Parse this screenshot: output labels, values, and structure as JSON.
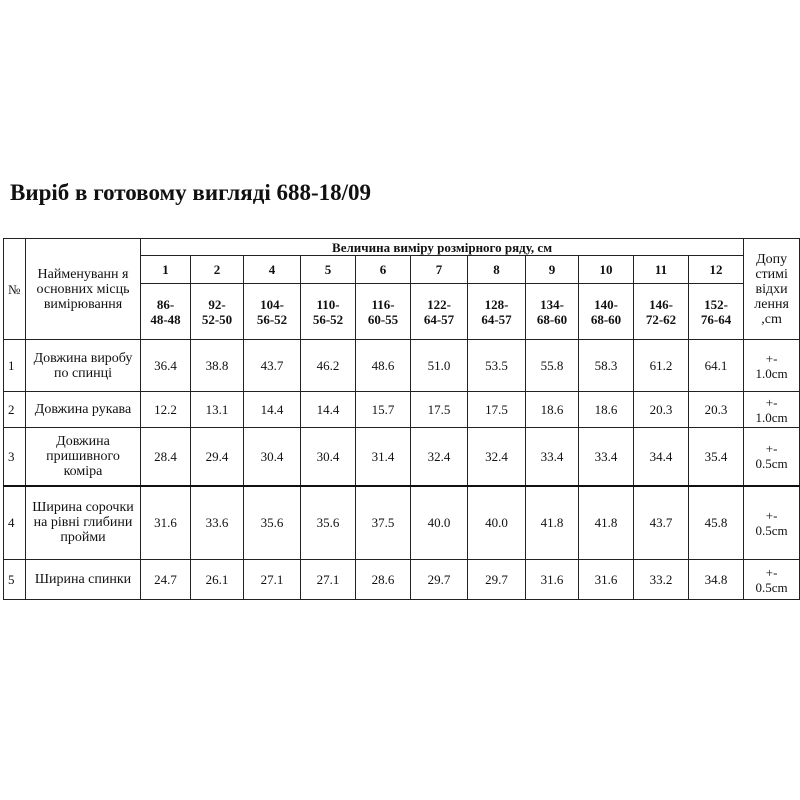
{
  "title": "Виріб в готовому вигляді  688-18/09",
  "table": {
    "header": {
      "number_label": "№",
      "name_label": "Найменуванн я основних місць вимірювання",
      "group_label": "Величина виміру розмірного ряду, см",
      "sizes": [
        {
          "number": "1",
          "measure": "86-\n48-48"
        },
        {
          "number": "2",
          "measure": "92-\n52-50"
        },
        {
          "number": "4",
          "measure": "104-\n56-52"
        },
        {
          "number": "5",
          "measure": "110-\n56-52"
        },
        {
          "number": "6",
          "measure": "116-\n60-55"
        },
        {
          "number": "7",
          "measure": "122-\n64-57"
        },
        {
          "number": "8",
          "measure": "128-\n64-57"
        },
        {
          "number": "9",
          "measure": "134-\n68-60"
        },
        {
          "number": "10",
          "measure": "140-\n68-60"
        },
        {
          "number": "11",
          "measure": "146-\n72-62"
        },
        {
          "number": "12",
          "measure": "152-\n76-64"
        }
      ],
      "tolerance_label": "Допу\nстимі\nвідхи\nлення\n,cm"
    },
    "rows": [
      {
        "number": "1",
        "name": "Довжина виробу по спинці",
        "values": [
          "36.4",
          "38.8",
          "43.7",
          "46.2",
          "48.6",
          "51.0",
          "53.5",
          "55.8",
          "58.3",
          "61.2",
          "64.1"
        ],
        "tolerance": "+-\n1.0cm"
      },
      {
        "number": "2",
        "name": "Довжина рукава",
        "values": [
          "12.2",
          "13.1",
          "14.4",
          "14.4",
          "15.7",
          "17.5",
          "17.5",
          "18.6",
          "18.6",
          "20.3",
          "20.3"
        ],
        "tolerance": "+-\n1.0cm"
      },
      {
        "number": "3",
        "name": "Довжина пришивного коміра",
        "values": [
          "28.4",
          "29.4",
          "30.4",
          "30.4",
          "31.4",
          "32.4",
          "32.4",
          "33.4",
          "33.4",
          "34.4",
          "35.4"
        ],
        "tolerance": "+-\n0.5cm"
      },
      {
        "number": "4",
        "name": "Ширина сорочки на рівні глибини пройми",
        "values": [
          "31.6",
          "33.6",
          "35.6",
          "35.6",
          "37.5",
          "40.0",
          "40.0",
          "41.8",
          "41.8",
          "43.7",
          "45.8"
        ],
        "tolerance": "+-\n0.5cm"
      },
      {
        "number": "5",
        "name": "Ширина спинки",
        "values": [
          "24.7",
          "26.1",
          "27.1",
          "27.1",
          "28.6",
          "29.7",
          "29.7",
          "31.6",
          "31.6",
          "33.2",
          "34.8"
        ],
        "tolerance": "+-\n0.5cm"
      }
    ]
  }
}
